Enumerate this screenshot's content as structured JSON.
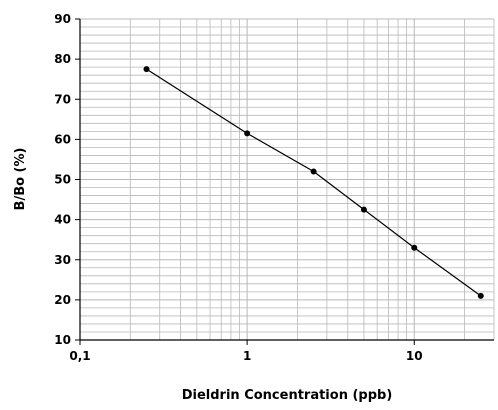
{
  "chart_data": {
    "type": "line",
    "title": "",
    "xlabel": "Dieldrin Concentration (ppb)",
    "ylabel": "B/Bo (%)",
    "x_scale": "log",
    "xlim": [
      0.1,
      30
    ],
    "ylim": [
      10,
      90
    ],
    "x_ticks": [
      0.1,
      1,
      10
    ],
    "x_tick_labels": [
      "0,1",
      "1",
      "10"
    ],
    "y_ticks": [
      10,
      20,
      30,
      40,
      50,
      60,
      70,
      80,
      90
    ],
    "y_tick_labels": [
      "10",
      "20",
      "30",
      "40",
      "50",
      "60",
      "70",
      "80",
      "90"
    ],
    "grid": true,
    "series": [
      {
        "x": [
          0.25,
          1,
          2.5,
          5,
          10,
          25
        ],
        "y": [
          77.5,
          61.5,
          52,
          42.5,
          33,
          21
        ]
      }
    ],
    "colors": {
      "background": "#ffffff",
      "grid": "#b8b8b8",
      "axis": "#000000",
      "line": "#000000",
      "marker": "#000000"
    }
  }
}
